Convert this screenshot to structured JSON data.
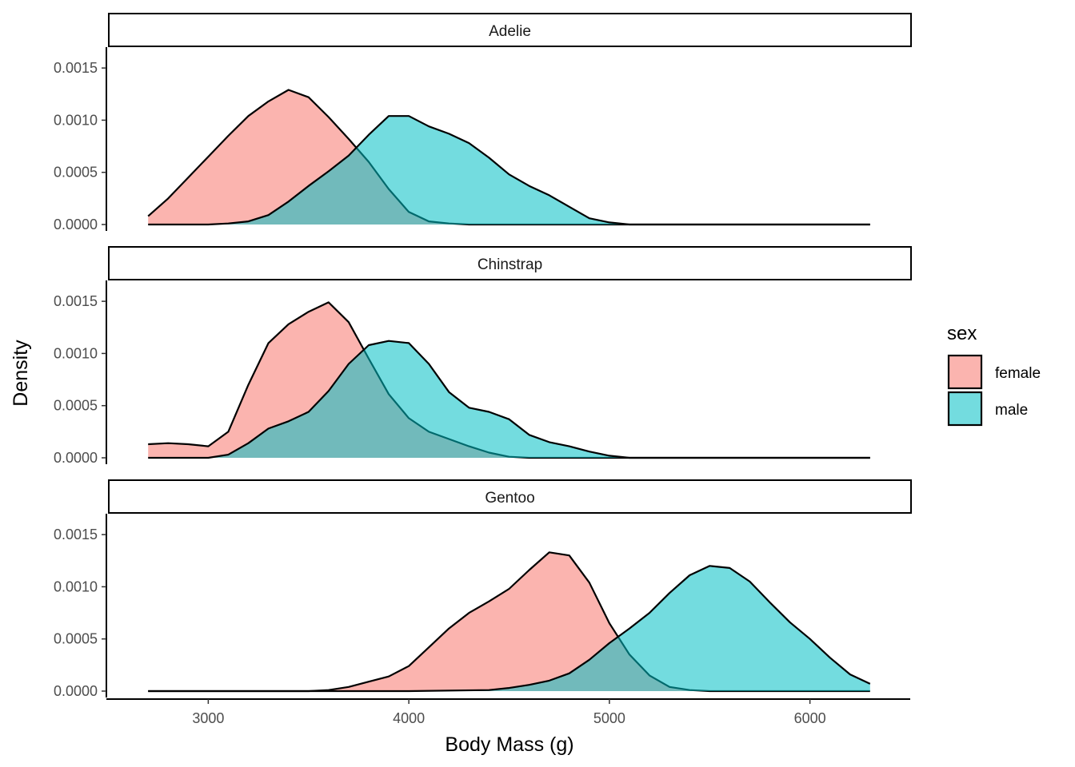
{
  "chart_data": {
    "type": "area",
    "subtype": "density",
    "facet_by": "species",
    "xlabel": "Body Mass (g)",
    "ylabel": "Density",
    "xlim": [
      2500,
      6500
    ],
    "ylim": [
      0,
      0.0017
    ],
    "x_ticks": [
      3000,
      4000,
      5000,
      6000
    ],
    "x_tick_labels": [
      "3000",
      "4000",
      "5000",
      "6000"
    ],
    "y_ticks": [
      0,
      0.0005,
      0.001,
      0.0015
    ],
    "y_tick_labels": [
      "0.0000",
      "0.0005",
      "0.0010",
      "0.0015"
    ],
    "legend": {
      "title": "sex",
      "position": "right",
      "items": [
        {
          "label": "female",
          "color": "#F8766D"
        },
        {
          "label": "male",
          "color": "#00BFC4"
        }
      ]
    },
    "fill_alpha": 0.55,
    "grid": false,
    "panels": [
      {
        "label": "Adelie",
        "series": [
          {
            "name": "female",
            "color": "#F8766D",
            "points": [
              [
                2700,
                8e-05
              ],
              [
                2800,
                0.00025
              ],
              [
                2900,
                0.00045
              ],
              [
                3000,
                0.00065
              ],
              [
                3100,
                0.00085
              ],
              [
                3200,
                0.00104
              ],
              [
                3300,
                0.00118
              ],
              [
                3400,
                0.00129
              ],
              [
                3500,
                0.00122
              ],
              [
                3600,
                0.00103
              ],
              [
                3700,
                0.00082
              ],
              [
                3800,
                0.0006
              ],
              [
                3900,
                0.00034
              ],
              [
                4000,
                0.00012
              ],
              [
                4100,
                3e-05
              ],
              [
                4200,
                1e-05
              ],
              [
                4300,
                0.0
              ],
              [
                4500,
                0.0
              ],
              [
                5000,
                0.0
              ],
              [
                5500,
                0.0
              ],
              [
                6000,
                0.0
              ],
              [
                6300,
                0.0
              ]
            ]
          },
          {
            "name": "male",
            "color": "#00BFC4",
            "points": [
              [
                2700,
                0.0
              ],
              [
                3000,
                0.0
              ],
              [
                3100,
                1e-05
              ],
              [
                3200,
                3e-05
              ],
              [
                3300,
                9e-05
              ],
              [
                3400,
                0.00022
              ],
              [
                3500,
                0.00037
              ],
              [
                3600,
                0.00051
              ],
              [
                3700,
                0.00066
              ],
              [
                3800,
                0.00086
              ],
              [
                3900,
                0.00104
              ],
              [
                4000,
                0.00104
              ],
              [
                4100,
                0.00094
              ],
              [
                4200,
                0.00087
              ],
              [
                4300,
                0.00078
              ],
              [
                4400,
                0.00064
              ],
              [
                4500,
                0.00048
              ],
              [
                4600,
                0.00037
              ],
              [
                4700,
                0.00028
              ],
              [
                4800,
                0.00017
              ],
              [
                4900,
                6e-05
              ],
              [
                5000,
                2e-05
              ],
              [
                5100,
                0.0
              ],
              [
                5500,
                0.0
              ],
              [
                6000,
                0.0
              ],
              [
                6300,
                0.0
              ]
            ]
          }
        ]
      },
      {
        "label": "Chinstrap",
        "series": [
          {
            "name": "female",
            "color": "#F8766D",
            "points": [
              [
                2700,
                0.00013
              ],
              [
                2800,
                0.00014
              ],
              [
                2900,
                0.00013
              ],
              [
                3000,
                0.00011
              ],
              [
                3100,
                0.00025
              ],
              [
                3200,
                0.0007
              ],
              [
                3300,
                0.0011
              ],
              [
                3400,
                0.00128
              ],
              [
                3500,
                0.0014
              ],
              [
                3600,
                0.00149
              ],
              [
                3700,
                0.0013
              ],
              [
                3800,
                0.00095
              ],
              [
                3900,
                0.00061
              ],
              [
                4000,
                0.00038
              ],
              [
                4100,
                0.00025
              ],
              [
                4200,
                0.00018
              ],
              [
                4300,
                0.00011
              ],
              [
                4400,
                5e-05
              ],
              [
                4500,
                1e-05
              ],
              [
                4600,
                0.0
              ],
              [
                5000,
                0.0
              ],
              [
                5500,
                0.0
              ],
              [
                6000,
                0.0
              ],
              [
                6300,
                0.0
              ]
            ]
          },
          {
            "name": "male",
            "color": "#00BFC4",
            "points": [
              [
                2700,
                0.0
              ],
              [
                3000,
                0.0
              ],
              [
                3100,
                3e-05
              ],
              [
                3200,
                0.00014
              ],
              [
                3300,
                0.00028
              ],
              [
                3400,
                0.00035
              ],
              [
                3500,
                0.00044
              ],
              [
                3600,
                0.00064
              ],
              [
                3700,
                0.0009
              ],
              [
                3800,
                0.00108
              ],
              [
                3900,
                0.00112
              ],
              [
                4000,
                0.0011
              ],
              [
                4100,
                0.0009
              ],
              [
                4200,
                0.00063
              ],
              [
                4300,
                0.00048
              ],
              [
                4400,
                0.00044
              ],
              [
                4500,
                0.00037
              ],
              [
                4600,
                0.00022
              ],
              [
                4700,
                0.00015
              ],
              [
                4800,
                0.00011
              ],
              [
                4900,
                6e-05
              ],
              [
                5000,
                2e-05
              ],
              [
                5100,
                0.0
              ],
              [
                5500,
                0.0
              ],
              [
                6000,
                0.0
              ],
              [
                6300,
                0.0
              ]
            ]
          }
        ]
      },
      {
        "label": "Gentoo",
        "series": [
          {
            "name": "female",
            "color": "#F8766D",
            "points": [
              [
                2700,
                0.0
              ],
              [
                3000,
                0.0
              ],
              [
                3500,
                0.0
              ],
              [
                3600,
                1e-05
              ],
              [
                3700,
                4e-05
              ],
              [
                3800,
                9e-05
              ],
              [
                3900,
                0.00014
              ],
              [
                4000,
                0.00024
              ],
              [
                4100,
                0.00042
              ],
              [
                4200,
                0.0006
              ],
              [
                4300,
                0.00075
              ],
              [
                4400,
                0.00086
              ],
              [
                4500,
                0.00098
              ],
              [
                4600,
                0.00116
              ],
              [
                4700,
                0.00133
              ],
              [
                4800,
                0.0013
              ],
              [
                4900,
                0.00104
              ],
              [
                5000,
                0.00065
              ],
              [
                5100,
                0.00035
              ],
              [
                5200,
                0.00015
              ],
              [
                5300,
                4e-05
              ],
              [
                5400,
                1e-05
              ],
              [
                5500,
                0.0
              ],
              [
                6000,
                0.0
              ],
              [
                6300,
                0.0
              ]
            ]
          },
          {
            "name": "male",
            "color": "#00BFC4",
            "points": [
              [
                2700,
                0.0
              ],
              [
                4000,
                0.0
              ],
              [
                4400,
                1e-05
              ],
              [
                4500,
                3e-05
              ],
              [
                4600,
                6e-05
              ],
              [
                4700,
                0.0001
              ],
              [
                4800,
                0.00017
              ],
              [
                4900,
                0.0003
              ],
              [
                5000,
                0.00046
              ],
              [
                5100,
                0.0006
              ],
              [
                5200,
                0.00075
              ],
              [
                5300,
                0.00094
              ],
              [
                5400,
                0.00111
              ],
              [
                5500,
                0.0012
              ],
              [
                5600,
                0.00118
              ],
              [
                5700,
                0.00105
              ],
              [
                5800,
                0.00085
              ],
              [
                5900,
                0.00066
              ],
              [
                6000,
                0.0005
              ],
              [
                6100,
                0.00032
              ],
              [
                6200,
                0.00016
              ],
              [
                6300,
                7e-05
              ]
            ]
          }
        ]
      }
    ]
  }
}
